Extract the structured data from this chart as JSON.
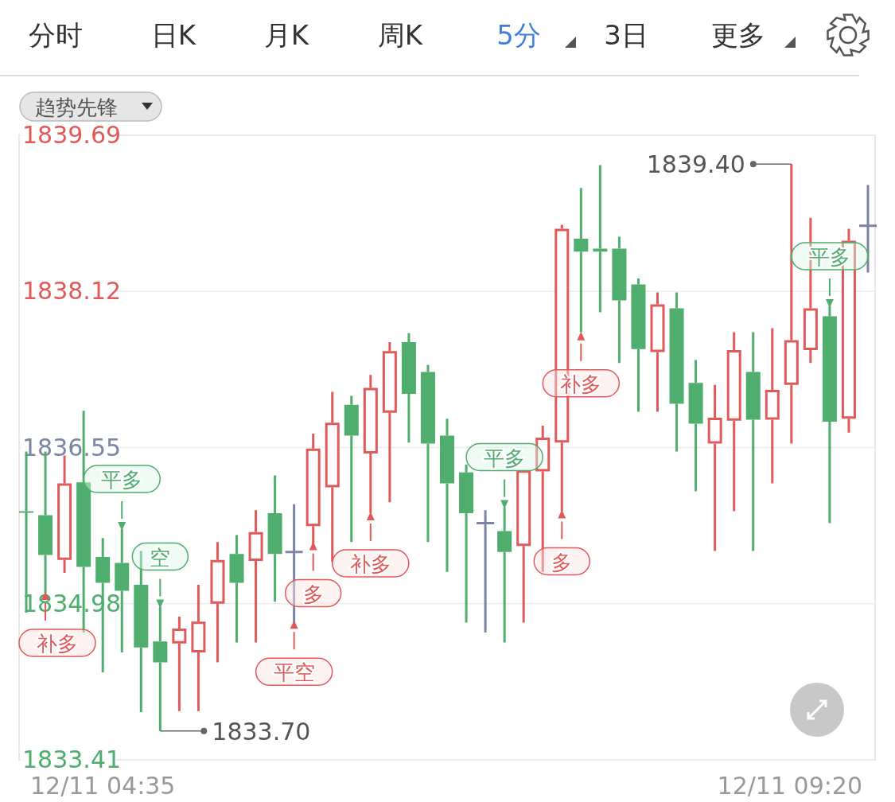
{
  "chart_data": {
    "type": "candlestick",
    "categories": [
      null,
      null,
      null,
      null,
      null,
      null,
      null,
      null,
      null,
      null,
      null,
      null,
      null,
      null,
      null,
      null,
      null,
      null,
      null,
      null,
      null,
      null,
      null,
      null,
      null,
      null,
      null,
      null,
      null,
      null,
      null,
      null,
      null,
      null,
      null,
      null,
      null,
      null,
      null,
      null,
      null,
      null,
      null,
      null,
      null
    ],
    "ohlc": [
      [
        1835.91,
        1836.51,
        1834.89,
        1835.9
      ],
      [
        1835.87,
        1836.51,
        1835.09,
        1835.47
      ],
      [
        1835.42,
        1836.47,
        1835.29,
        1836.19
      ],
      [
        1836.2,
        1836.92,
        1834.69,
        1835.35
      ],
      [
        1835.45,
        1835.64,
        1834.29,
        1835.19
      ],
      [
        1835.39,
        1835.73,
        1834.49,
        1835.11
      ],
      [
        1835.17,
        1835.51,
        1833.89,
        1834.54
      ],
      [
        1834.6,
        1834.95,
        1833.7,
        1834.39
      ],
      [
        1834.58,
        1834.85,
        1833.9,
        1834.73
      ],
      [
        1834.49,
        1835.17,
        1833.9,
        1834.8
      ],
      [
        1834.98,
        1835.6,
        1834.39,
        1835.42
      ],
      [
        1835.48,
        1835.67,
        1834.59,
        1835.19
      ],
      [
        1835.41,
        1835.92,
        1834.59,
        1835.7
      ],
      [
        1835.89,
        1836.27,
        1835.0,
        1835.48
      ],
      [
        1835.5,
        1835.98,
        1834.79,
        1835.5
      ],
      [
        1835.76,
        1836.69,
        1835.58,
        1836.54
      ],
      [
        1836.15,
        1837.11,
        1835.4,
        1836.8
      ],
      [
        1836.98,
        1837.07,
        1835.6,
        1836.67
      ],
      [
        1836.49,
        1837.28,
        1835.89,
        1837.15
      ],
      [
        1836.9,
        1837.61,
        1836.0,
        1837.52
      ],
      [
        1837.61,
        1837.7,
        1836.6,
        1837.09
      ],
      [
        1837.31,
        1837.38,
        1835.6,
        1836.59
      ],
      [
        1836.67,
        1836.84,
        1835.3,
        1836.19
      ],
      [
        1836.3,
        1836.38,
        1834.79,
        1835.89
      ],
      [
        1835.79,
        1835.92,
        1834.69,
        1835.79
      ],
      [
        1835.71,
        1835.95,
        1834.59,
        1835.5
      ],
      [
        1835.56,
        1836.32,
        1834.79,
        1836.32
      ],
      [
        1836.31,
        1836.77,
        1835.3,
        1836.65
      ],
      [
        1836.6,
        1838.79,
        1835.91,
        1838.75
      ],
      [
        1838.65,
        1839.16,
        1837.71,
        1838.52
      ],
      [
        1838.55,
        1839.39,
        1837.91,
        1838.52
      ],
      [
        1838.55,
        1838.67,
        1837.4,
        1838.03
      ],
      [
        1838.19,
        1838.25,
        1836.91,
        1837.54
      ],
      [
        1837.51,
        1838.11,
        1836.91,
        1837.99
      ],
      [
        1837.95,
        1838.11,
        1836.51,
        1836.99
      ],
      [
        1837.2,
        1837.43,
        1836.11,
        1836.79
      ],
      [
        1836.59,
        1837.18,
        1835.51,
        1836.85
      ],
      [
        1836.82,
        1837.71,
        1835.91,
        1837.53
      ],
      [
        1837.31,
        1837.71,
        1835.51,
        1836.83
      ],
      [
        1836.83,
        1837.75,
        1836.19,
        1837.13
      ],
      [
        1837.18,
        1839.4,
        1836.59,
        1837.63
      ],
      [
        1837.53,
        1838.86,
        1837.4,
        1837.95
      ],
      [
        1837.87,
        1837.97,
        1835.79,
        1836.81
      ],
      [
        1836.84,
        1838.75,
        1836.7,
        1838.63
      ],
      [
        1838.78,
        1839.19,
        1838.31,
        1838.78
      ]
    ],
    "colors": [
      "#4fad6e",
      "#4fad6e",
      "#e05a5a",
      "#4fad6e",
      "#4fad6e",
      "#4fad6e",
      "#4fad6e",
      "#4fad6e",
      "#e05a5a",
      "#e05a5a",
      "#e05a5a",
      "#4fad6e",
      "#e05a5a",
      "#4fad6e",
      "#7b84a3",
      "#e05a5a",
      "#e05a5a",
      "#4fad6e",
      "#e05a5a",
      "#e05a5a",
      "#4fad6e",
      "#4fad6e",
      "#4fad6e",
      "#4fad6e",
      "#7b84a3",
      "#4fad6e",
      "#e05a5a",
      "#e05a5a",
      "#e05a5a",
      "#4fad6e",
      "#4fad6e",
      "#4fad6e",
      "#4fad6e",
      "#e05a5a",
      "#4fad6e",
      "#4fad6e",
      "#e05a5a",
      "#e05a5a",
      "#4fad6e",
      "#e05a5a",
      "#e05a5a",
      "#e05a5a",
      "#4fad6e",
      "#e05a5a",
      "#7b84a3"
    ],
    "ylim": [
      1833.41,
      1839.69
    ],
    "yticks": [
      1833.41,
      1834.98,
      1836.55,
      1838.12,
      1839.69
    ],
    "grid": "y",
    "series": [
      {
        "type": "scatter",
        "color": "#e05a5a",
        "values": [
          null,
          1835.05,
          null,
          null,
          null,
          null,
          null,
          null,
          null,
          null,
          null,
          null,
          null,
          null,
          1834.76,
          1835.55,
          null,
          null,
          1835.85,
          null,
          null,
          null,
          null,
          null,
          null,
          null,
          null,
          null,
          1835.87,
          1837.66,
          null,
          null,
          null,
          null,
          null,
          null,
          null,
          null,
          null,
          null,
          null,
          null,
          null,
          null,
          null
        ],
        "value_labels": [
          null,
          "补多",
          null,
          null,
          null,
          null,
          null,
          null,
          null,
          null,
          null,
          null,
          null,
          null,
          "平空",
          "多",
          null,
          null,
          "补多",
          null,
          null,
          null,
          null,
          null,
          null,
          null,
          null,
          null,
          "多",
          "补多",
          null,
          null,
          null,
          null,
          null,
          null,
          null,
          null,
          null,
          null,
          null,
          null,
          null,
          null,
          null
        ]
      },
      {
        "type": "scatter",
        "color": "#4fad6e",
        "values": [
          null,
          null,
          null,
          null,
          null,
          1835.77,
          null,
          1834.99,
          null,
          null,
          null,
          null,
          null,
          null,
          null,
          null,
          null,
          null,
          null,
          null,
          null,
          null,
          null,
          null,
          null,
          1835.99,
          null,
          null,
          null,
          null,
          null,
          null,
          null,
          null,
          null,
          null,
          null,
          null,
          null,
          null,
          null,
          null,
          1838.01,
          null,
          null
        ],
        "value_labels": [
          null,
          null,
          null,
          null,
          null,
          "平多",
          null,
          "空",
          null,
          null,
          null,
          null,
          null,
          null,
          null,
          null,
          null,
          null,
          null,
          null,
          null,
          null,
          null,
          null,
          null,
          "平多",
          null,
          null,
          null,
          null,
          null,
          null,
          null,
          null,
          null,
          null,
          null,
          null,
          null,
          null,
          null,
          null,
          "平多",
          null,
          null
        ]
      }
    ],
    "annotations": [
      "分时",
      "日K",
      "月K",
      "周K",
      "5分",
      "3日",
      "更多",
      "趋势先锋",
      "12/11 04:35",
      "12/11 09:20",
      "1839.40",
      "1833.70"
    ]
  }
}
